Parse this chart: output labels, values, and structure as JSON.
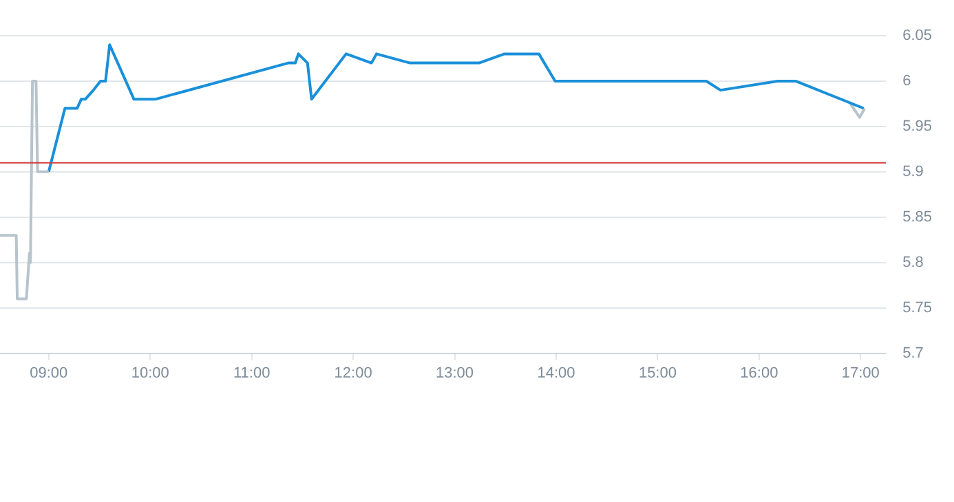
{
  "chart_data": {
    "type": "line",
    "xlim": [
      8.52,
      17.25
    ],
    "ylim": [
      5.7,
      6.05
    ],
    "xticks": [
      {
        "value": 9,
        "label": "09:00"
      },
      {
        "value": 10,
        "label": "10:00"
      },
      {
        "value": 11,
        "label": "11:00"
      },
      {
        "value": 12,
        "label": "12:00"
      },
      {
        "value": 13,
        "label": "13:00"
      },
      {
        "value": 14,
        "label": "14:00"
      },
      {
        "value": 15,
        "label": "15:00"
      },
      {
        "value": 16,
        "label": "16:00"
      },
      {
        "value": 17,
        "label": "17:00"
      }
    ],
    "yticks": [
      5.7,
      5.75,
      5.8,
      5.85,
      5.9,
      5.95,
      6,
      6.05
    ],
    "series": [
      {
        "color": "#b8c4cc",
        "x": [
          8.52,
          8.68,
          8.69,
          8.78,
          8.81,
          8.82,
          8.84,
          8.875,
          8.89,
          9.0
        ],
        "values": [
          5.83,
          5.83,
          5.76,
          5.76,
          5.81,
          5.8,
          6.0,
          6.0,
          5.9,
          5.9
        ]
      },
      {
        "color": "#1a90d9",
        "x": [
          9.0,
          9.16,
          9.28,
          9.32,
          9.36,
          9.44,
          9.51,
          9.56,
          9.6,
          9.84,
          10.05,
          11.36,
          11.43,
          11.46,
          11.55,
          11.59,
          11.93,
          12.18,
          12.23,
          12.56,
          13.24,
          13.49,
          13.83,
          13.99,
          15.48,
          15.62,
          16.18,
          16.36,
          17.03
        ],
        "values": [
          5.9,
          5.97,
          5.97,
          5.98,
          5.98,
          5.99,
          6.0,
          6.0,
          6.04,
          5.98,
          5.98,
          6.02,
          6.02,
          6.03,
          6.02,
          5.98,
          6.03,
          6.02,
          6.03,
          6.02,
          6.02,
          6.03,
          6.03,
          6.0,
          6.0,
          5.99,
          6.0,
          6.0,
          5.97
        ]
      },
      {
        "color": "#b8c4cc",
        "x": [
          16.9,
          16.99,
          17.04
        ],
        "values": [
          5.975,
          5.96,
          5.97
        ]
      }
    ],
    "ref_lines": [
      {
        "axis": "y",
        "value": 5.91,
        "color": "#d04040"
      }
    ],
    "grid": "y",
    "legend": false,
    "marker": "none",
    "line_style": "solid"
  }
}
